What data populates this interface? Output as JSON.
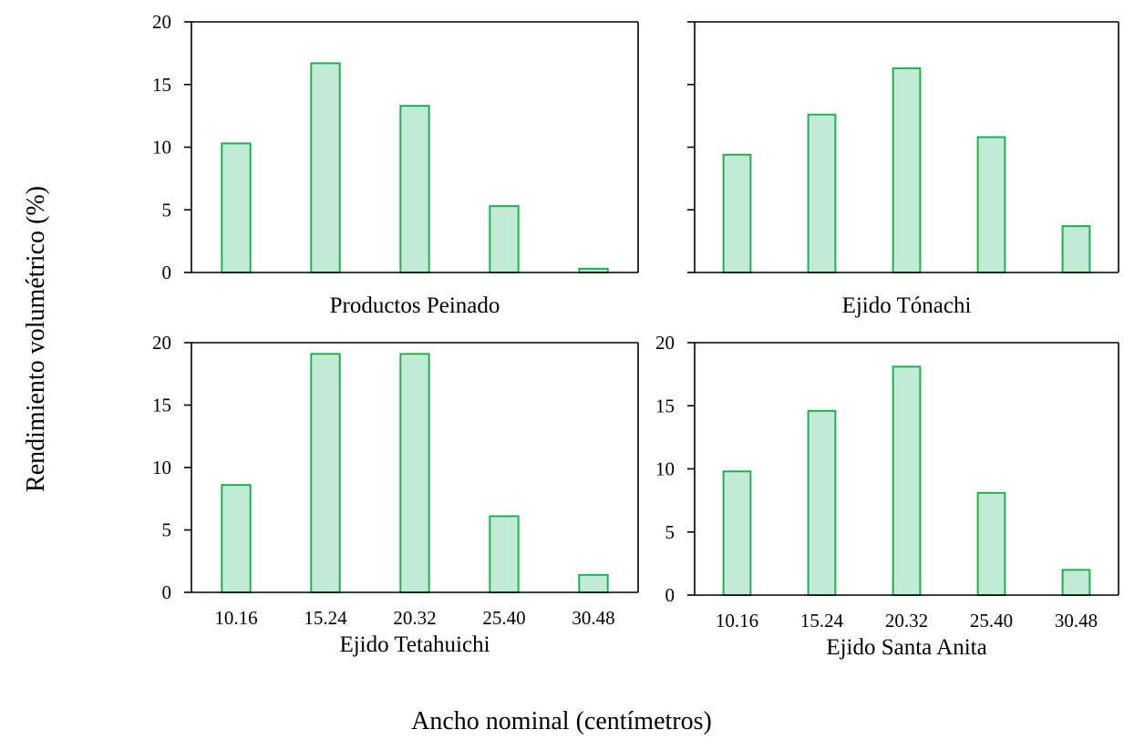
{
  "figure": {
    "ylabel": "Rendimiento volumétrico (%)",
    "xlabel": "Ancho nominal (centímetros)"
  },
  "colors": {
    "bar_fill": "#c2ebd5",
    "bar_stroke": "#1fb04f",
    "axis": "#000000"
  },
  "chart_data": [
    {
      "type": "bar",
      "title": "Productos Peinado",
      "categories": [
        "10.16",
        "15.24",
        "20.32",
        "25.40",
        "30.48"
      ],
      "values": [
        10.3,
        16.7,
        13.3,
        5.3,
        0.3
      ],
      "ylim": [
        0,
        20
      ],
      "yticks": [
        "0",
        "5",
        "10",
        "15",
        "20"
      ],
      "ytick_labels_shown": true,
      "xtick_labels_shown": false,
      "grid": false
    },
    {
      "type": "bar",
      "title": "Ejido Tónachi",
      "categories": [
        "10.16",
        "15.24",
        "20.32",
        "25.40",
        "30.48"
      ],
      "values": [
        9.4,
        12.6,
        16.3,
        10.8,
        3.7
      ],
      "ylim": [
        0,
        20
      ],
      "yticks": [
        "0",
        "5",
        "10",
        "15",
        "20"
      ],
      "ytick_labels_shown": false,
      "xtick_labels_shown": false,
      "grid": false
    },
    {
      "type": "bar",
      "title": "Ejido Tetahuichi",
      "categories": [
        "10.16",
        "15.24",
        "20.32",
        "25.40",
        "30.48"
      ],
      "values": [
        8.6,
        19.1,
        19.1,
        6.1,
        1.4
      ],
      "ylim": [
        0,
        20
      ],
      "yticks": [
        "0",
        "5",
        "10",
        "15",
        "20"
      ],
      "ytick_labels_shown": true,
      "xtick_labels_shown": true,
      "grid": false
    },
    {
      "type": "bar",
      "title": "Ejido Santa Anita",
      "categories": [
        "10.16",
        "15.24",
        "20.32",
        "25.40",
        "30.48"
      ],
      "values": [
        9.8,
        14.6,
        18.1,
        8.1,
        2.0
      ],
      "ylim": [
        0,
        20
      ],
      "yticks": [
        "0",
        "5",
        "10",
        "15",
        "20"
      ],
      "ytick_labels_shown": true,
      "xtick_labels_shown": true,
      "grid": false
    }
  ]
}
